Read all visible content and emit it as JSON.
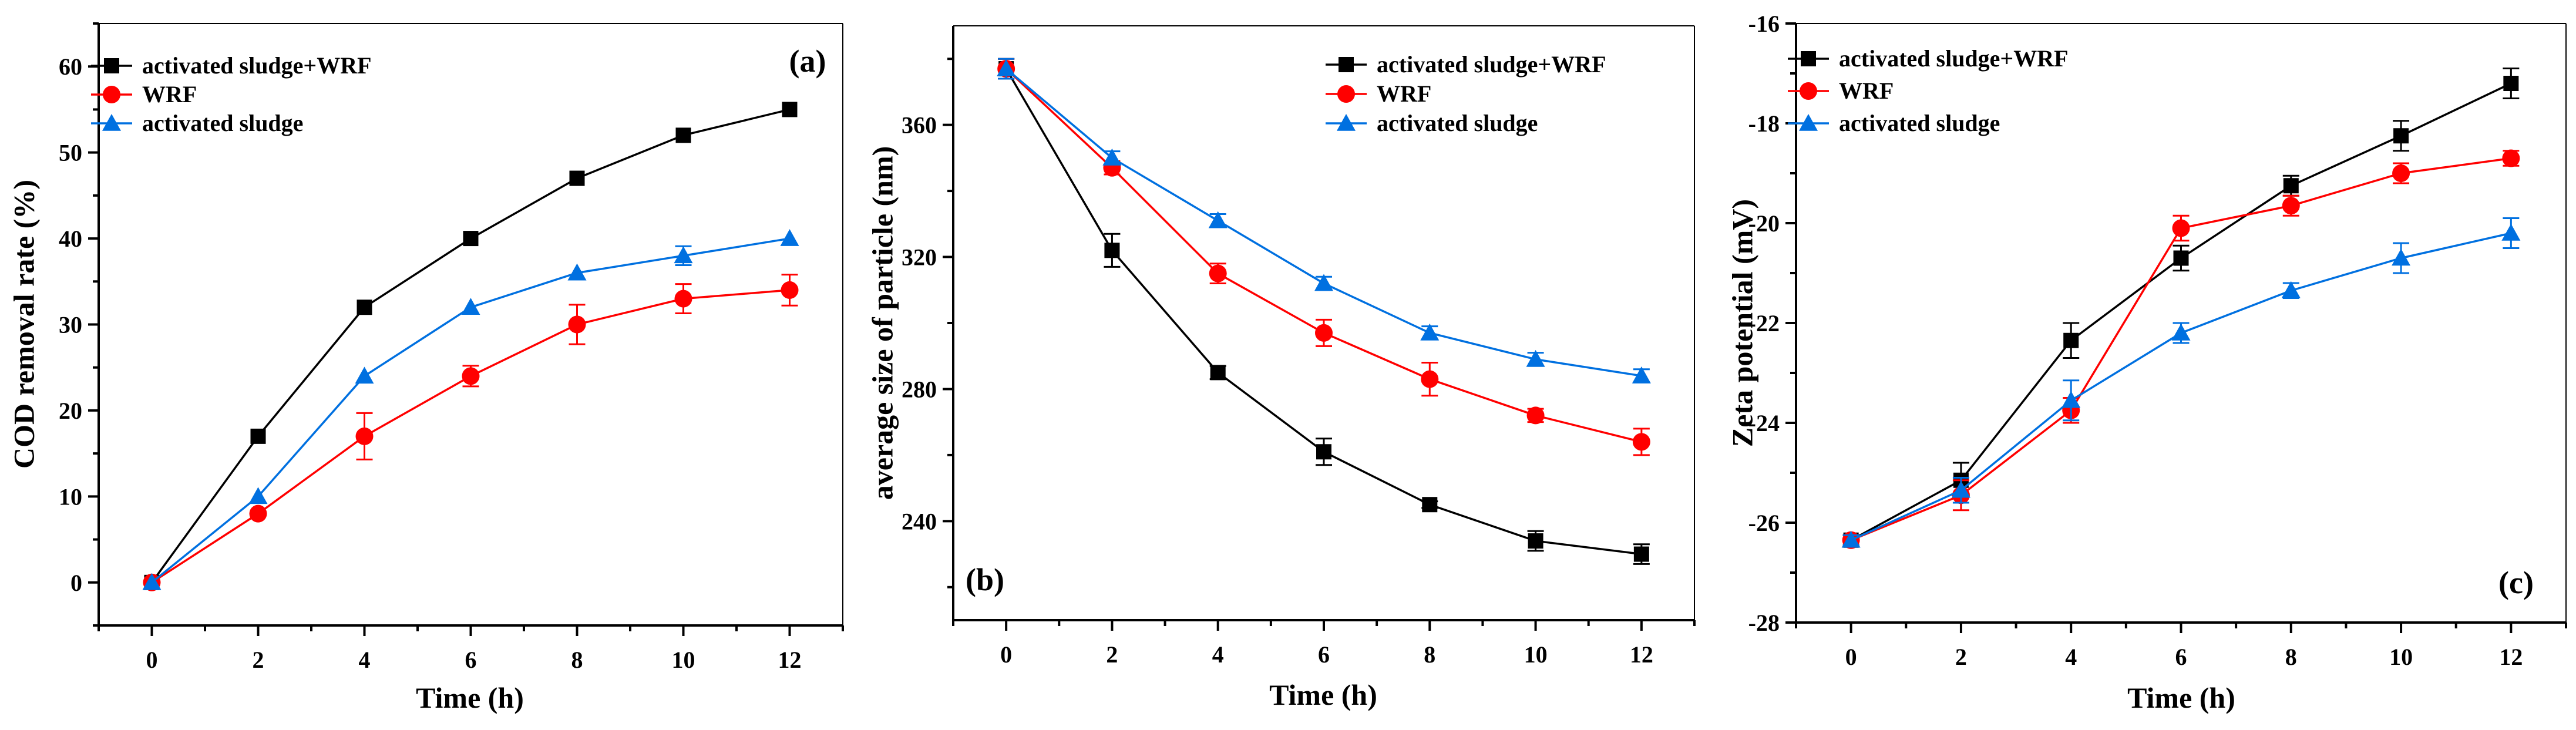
{
  "chart_data": [
    {
      "type": "line",
      "panel_label": "(a)",
      "xlabel": "Time (h)",
      "ylabel": "COD removal rate (%)",
      "x": [
        0,
        2,
        4,
        6,
        8,
        10,
        12
      ],
      "xlim": [
        -1,
        13
      ],
      "ylim": [
        -5,
        65
      ],
      "xticks": [
        0,
        2,
        4,
        6,
        8,
        10,
        12
      ],
      "yticks": [
        0,
        10,
        20,
        30,
        40,
        50,
        60
      ],
      "grid": false,
      "legend_position": "top-left",
      "series": [
        {
          "name": "activated sludge+WRF",
          "color": "#000000",
          "marker": "square",
          "values": [
            0,
            17,
            32,
            40,
            47,
            52,
            55
          ],
          "errors": [
            0,
            0,
            0,
            0,
            0,
            0,
            0
          ]
        },
        {
          "name": "WRF",
          "color": "#ff0000",
          "marker": "circle",
          "values": [
            0,
            8,
            17,
            24,
            30,
            33,
            34
          ],
          "errors": [
            0,
            0,
            2.7,
            1.2,
            2.3,
            1.7,
            1.8
          ]
        },
        {
          "name": "activated sludge",
          "color": "#0070e0",
          "marker": "triangle",
          "values": [
            0,
            10,
            24,
            32,
            36,
            38,
            40
          ],
          "errors": [
            0,
            0,
            0,
            0,
            0,
            1.1,
            0
          ]
        }
      ]
    },
    {
      "type": "line",
      "panel_label": "(b)",
      "xlabel": "Time (h)",
      "ylabel": "average size of particle (nm)",
      "x": [
        0,
        2,
        4,
        6,
        8,
        10,
        12
      ],
      "xlim": [
        -1,
        13
      ],
      "ylim": [
        210,
        390
      ],
      "xticks": [
        0,
        2,
        4,
        6,
        8,
        10,
        12
      ],
      "yticks": [
        240,
        280,
        320,
        360
      ],
      "grid": false,
      "legend_position": "top-right",
      "series": [
        {
          "name": "activated sludge+WRF",
          "color": "#000000",
          "marker": "square",
          "values": [
            377,
            322,
            285,
            261,
            245,
            234,
            230
          ],
          "errors": [
            3,
            5,
            2,
            4,
            1,
            3,
            3
          ]
        },
        {
          "name": "WRF",
          "color": "#ff0000",
          "marker": "circle",
          "values": [
            377,
            347,
            315,
            297,
            283,
            272,
            264
          ],
          "errors": [
            3,
            2,
            3,
            4,
            5,
            2,
            4
          ]
        },
        {
          "name": "activated sludge",
          "color": "#0070e0",
          "marker": "triangle",
          "values": [
            377,
            350,
            331,
            312,
            297,
            289,
            284
          ],
          "errors": [
            3,
            2,
            2,
            2,
            2,
            2,
            2
          ]
        }
      ]
    },
    {
      "type": "line",
      "panel_label": "(c)",
      "xlabel": "Time (h)",
      "ylabel": "Zeta potential (mV)",
      "x": [
        0,
        2,
        4,
        6,
        8,
        10,
        12
      ],
      "xlim": [
        -1,
        13
      ],
      "ylim": [
        -28,
        -16
      ],
      "xticks": [
        0,
        2,
        4,
        6,
        8,
        10,
        12
      ],
      "yticks": [
        -28,
        -26,
        -24,
        -22,
        -20,
        -18,
        -16
      ],
      "grid": false,
      "legend_position": "top-left",
      "series": [
        {
          "name": "activated sludge+WRF",
          "color": "#000000",
          "marker": "square",
          "values": [
            -26.35,
            -25.15,
            -22.35,
            -20.7,
            -19.25,
            -18.25,
            -17.2
          ],
          "errors": [
            0.1,
            0.35,
            0.35,
            0.25,
            0.2,
            0.3,
            0.3
          ]
        },
        {
          "name": "WRF",
          "color": "#ff0000",
          "marker": "circle",
          "values": [
            -26.35,
            -25.45,
            -23.75,
            -20.1,
            -19.65,
            -19.0,
            -18.7
          ],
          "errors": [
            0.1,
            0.3,
            0.25,
            0.25,
            0.2,
            0.2,
            0.15
          ]
        },
        {
          "name": "activated sludge",
          "color": "#0070e0",
          "marker": "triangle",
          "values": [
            -26.35,
            -25.35,
            -23.55,
            -22.2,
            -21.35,
            -20.7,
            -20.2
          ],
          "errors": [
            0.1,
            0.25,
            0.4,
            0.2,
            0.15,
            0.3,
            0.3
          ]
        }
      ]
    }
  ]
}
